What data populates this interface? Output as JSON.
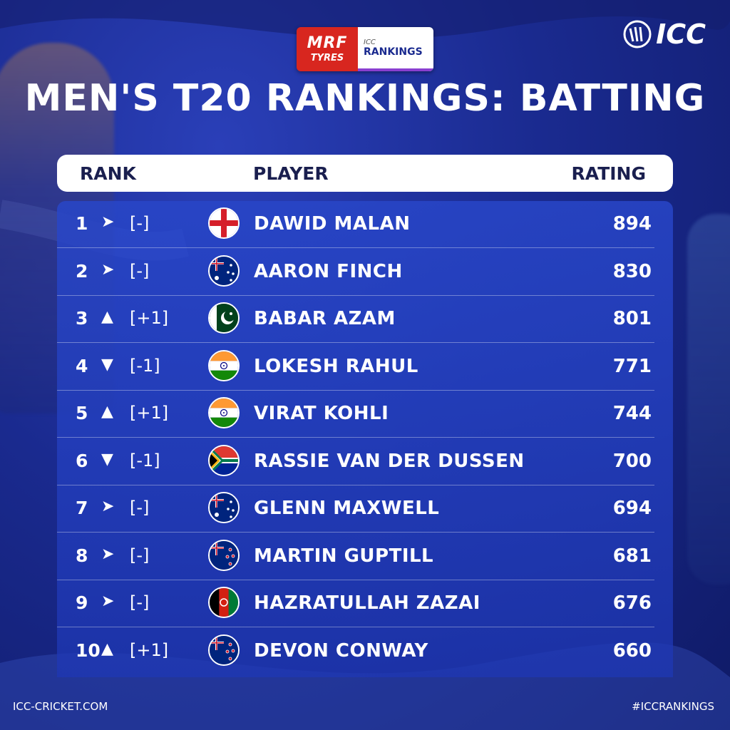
{
  "sponsor": {
    "brand_line1": "MRF",
    "brand_line2": "TYRES",
    "badge_line1": "ICC",
    "badge_line2": "RANKINGS"
  },
  "logo_text": "ICC",
  "title": "MEN'S T20 RANKINGS: BATTING",
  "header": {
    "rank": "RANK",
    "player": "PLAYER",
    "rating": "RATING"
  },
  "rows": [
    {
      "rank": "1",
      "arrow": "➤",
      "change": "[-]",
      "player": "DAWID MALAN",
      "rating": "894",
      "flag": "england-flag-icon"
    },
    {
      "rank": "2",
      "arrow": "➤",
      "change": "[-]",
      "player": "AARON FINCH",
      "rating": "830",
      "flag": "australia-flag-icon"
    },
    {
      "rank": "3",
      "arrow": "▲",
      "change": "[+1]",
      "player": "BABAR AZAM",
      "rating": "801",
      "flag": "pakistan-flag-icon"
    },
    {
      "rank": "4",
      "arrow": "▼",
      "change": "[-1]",
      "player": "LOKESH RAHUL",
      "rating": "771",
      "flag": "india-flag-icon"
    },
    {
      "rank": "5",
      "arrow": "▲",
      "change": "[+1]",
      "player": "VIRAT KOHLI",
      "rating": "744",
      "flag": "india-flag-icon"
    },
    {
      "rank": "6",
      "arrow": "▼",
      "change": "[-1]",
      "player": "RASSIE VAN DER DUSSEN",
      "rating": "700",
      "flag": "south-africa-flag-icon"
    },
    {
      "rank": "7",
      "arrow": "➤",
      "change": "[-]",
      "player": "GLENN MAXWELL",
      "rating": "694",
      "flag": "australia-flag-icon"
    },
    {
      "rank": "8",
      "arrow": "➤",
      "change": "[-]",
      "player": "MARTIN GUPTILL",
      "rating": "681",
      "flag": "new-zealand-flag-icon"
    },
    {
      "rank": "9",
      "arrow": "➤",
      "change": "[-]",
      "player": "HAZRATULLAH ZAZAI",
      "rating": "676",
      "flag": "afghanistan-flag-icon"
    },
    {
      "rank": "10",
      "arrow": "▲",
      "change": "[+1]",
      "player": "DEVON CONWAY",
      "rating": "660",
      "flag": "new-zealand-flag-icon"
    }
  ],
  "footer": {
    "website": "ICC-CRICKET.COM",
    "hashtag": "#ICCRANKINGS"
  }
}
